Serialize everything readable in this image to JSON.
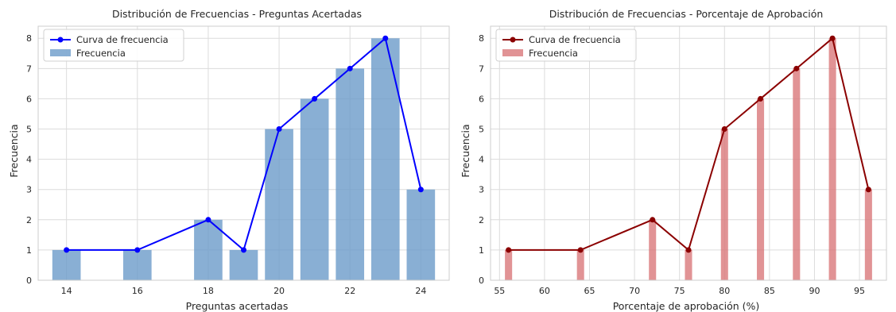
{
  "chart_data": [
    {
      "type": "bar",
      "title": "Distribución de Frecuencias - Preguntas Acertadas",
      "xlabel": "Preguntas acertadas",
      "ylabel": "Frecuencia",
      "xlim": [
        13.2,
        24.8
      ],
      "ylim": [
        0,
        8.4
      ],
      "xticks": [
        14,
        16,
        18,
        20,
        22,
        24
      ],
      "yticks": [
        0,
        1,
        2,
        3,
        4,
        5,
        6,
        7,
        8
      ],
      "bar_width": 0.8,
      "grid": true,
      "legend_position": "upper-left",
      "x": [
        14,
        16,
        18,
        19,
        20,
        21,
        22,
        23,
        24
      ],
      "series": [
        {
          "name": "Curva de frecuencia",
          "kind": "line",
          "color": "#0000ff",
          "values": [
            1,
            1,
            2,
            1,
            5,
            6,
            7,
            8,
            3
          ]
        },
        {
          "name": "Frecuencia",
          "kind": "bar",
          "color": "#6c9bc9",
          "values": [
            1,
            1,
            2,
            1,
            5,
            6,
            7,
            8,
            3
          ]
        }
      ]
    },
    {
      "type": "bar",
      "title": "Distribución de Frecuencias - Porcentaje de Aprobación",
      "xlabel": "Porcentaje de aprobación (%)",
      "ylabel": "Frecuencia",
      "xlim": [
        54,
        98
      ],
      "ylim": [
        0,
        8.4
      ],
      "xticks": [
        55,
        60,
        65,
        70,
        75,
        80,
        85,
        90,
        95
      ],
      "yticks": [
        0,
        1,
        2,
        3,
        4,
        5,
        6,
        7,
        8
      ],
      "bar_width": 0.8,
      "grid": true,
      "legend_position": "upper-left",
      "x": [
        56,
        64,
        72,
        76,
        80,
        84,
        88,
        92,
        96
      ],
      "series": [
        {
          "name": "Curva de frecuencia",
          "kind": "line",
          "color": "#8b0000",
          "values": [
            1,
            1,
            2,
            1,
            5,
            6,
            7,
            8,
            3
          ]
        },
        {
          "name": "Frecuencia",
          "kind": "bar",
          "color": "#d9787a",
          "values": [
            1,
            1,
            2,
            1,
            5,
            6,
            7,
            8,
            3
          ]
        }
      ]
    }
  ]
}
